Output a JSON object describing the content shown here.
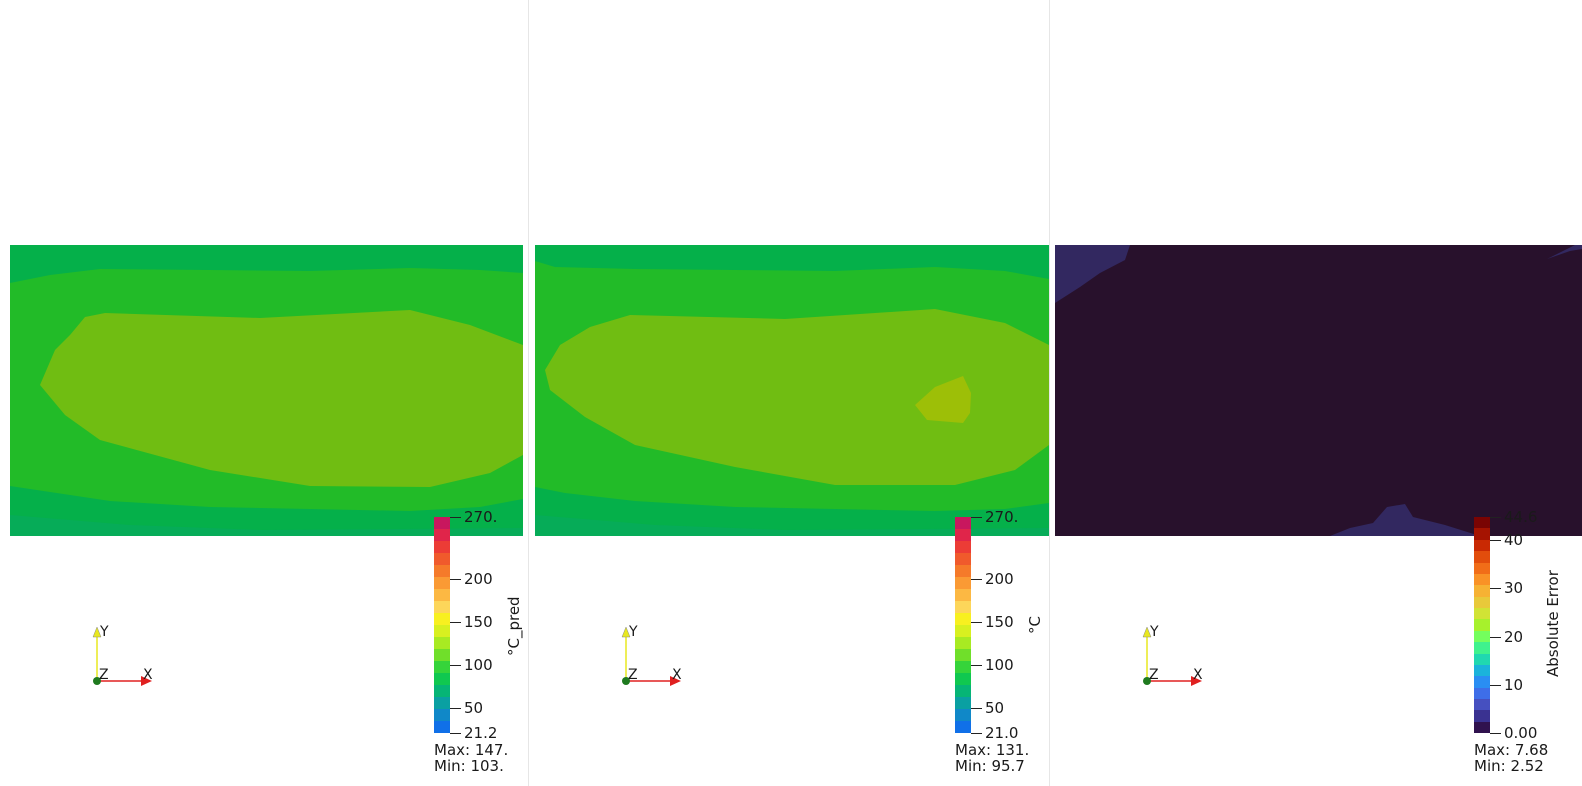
{
  "views": [
    {
      "id": "prediction",
      "colorbar_title": "°C_pred",
      "colorbar_ticks": [
        "270.",
        "200",
        "150",
        "100",
        "50",
        "21.2"
      ],
      "stats": {
        "max": "Max: 147.",
        "min": "Min: 103."
      },
      "colormap": "rainbow-desaturated"
    },
    {
      "id": "ground-truth",
      "colorbar_title": "°C",
      "colorbar_ticks": [
        "270.",
        "200",
        "150",
        "100",
        "50",
        "21.0"
      ],
      "stats": {
        "max": "Max: 131.",
        "min": "Min: 95.7"
      },
      "colormap": "rainbow-desaturated"
    },
    {
      "id": "absolute-error",
      "colorbar_title": "Absolute Error",
      "colorbar_ticks": [
        "44.6",
        "40",
        "30",
        "20",
        "10",
        "0.00"
      ],
      "stats": {
        "max": "Max: 7.68",
        "min": "Min: 2.52"
      },
      "colormap": "turbo"
    }
  ],
  "axes_labels": {
    "x": "X",
    "y": "Y",
    "z": "Z"
  },
  "colors": {
    "temp_ramp": [
      "#c8175e",
      "#e0254a",
      "#ec3c36",
      "#f05a2c",
      "#f57a2a",
      "#fa9a34",
      "#fcb843",
      "#fdd65a",
      "#f8f020",
      "#d8f020",
      "#a8ea22",
      "#70df2a",
      "#35d43a",
      "#10c850",
      "#06b576",
      "#0aa0a2",
      "#1088c8",
      "#1070e8"
    ],
    "err_ramp": [
      "#7a0403",
      "#a51301",
      "#c92903",
      "#e24d0c",
      "#f16d18",
      "#f99226",
      "#f6b233",
      "#e8c93a",
      "#d1e335",
      "#a7f12c",
      "#74fe5d",
      "#3ff28d",
      "#20d8b0",
      "#1bb3db",
      "#2a8ef3",
      "#3e6ee8",
      "#4650c0",
      "#3a3291",
      "#30124e"
    ],
    "field_outer": "#05b04a",
    "field_mid": "#22bb28",
    "field_inner": "#70bd12",
    "field_hot": "#9dbf07",
    "error_base": "#28112c",
    "error_patch": "#322860"
  }
}
